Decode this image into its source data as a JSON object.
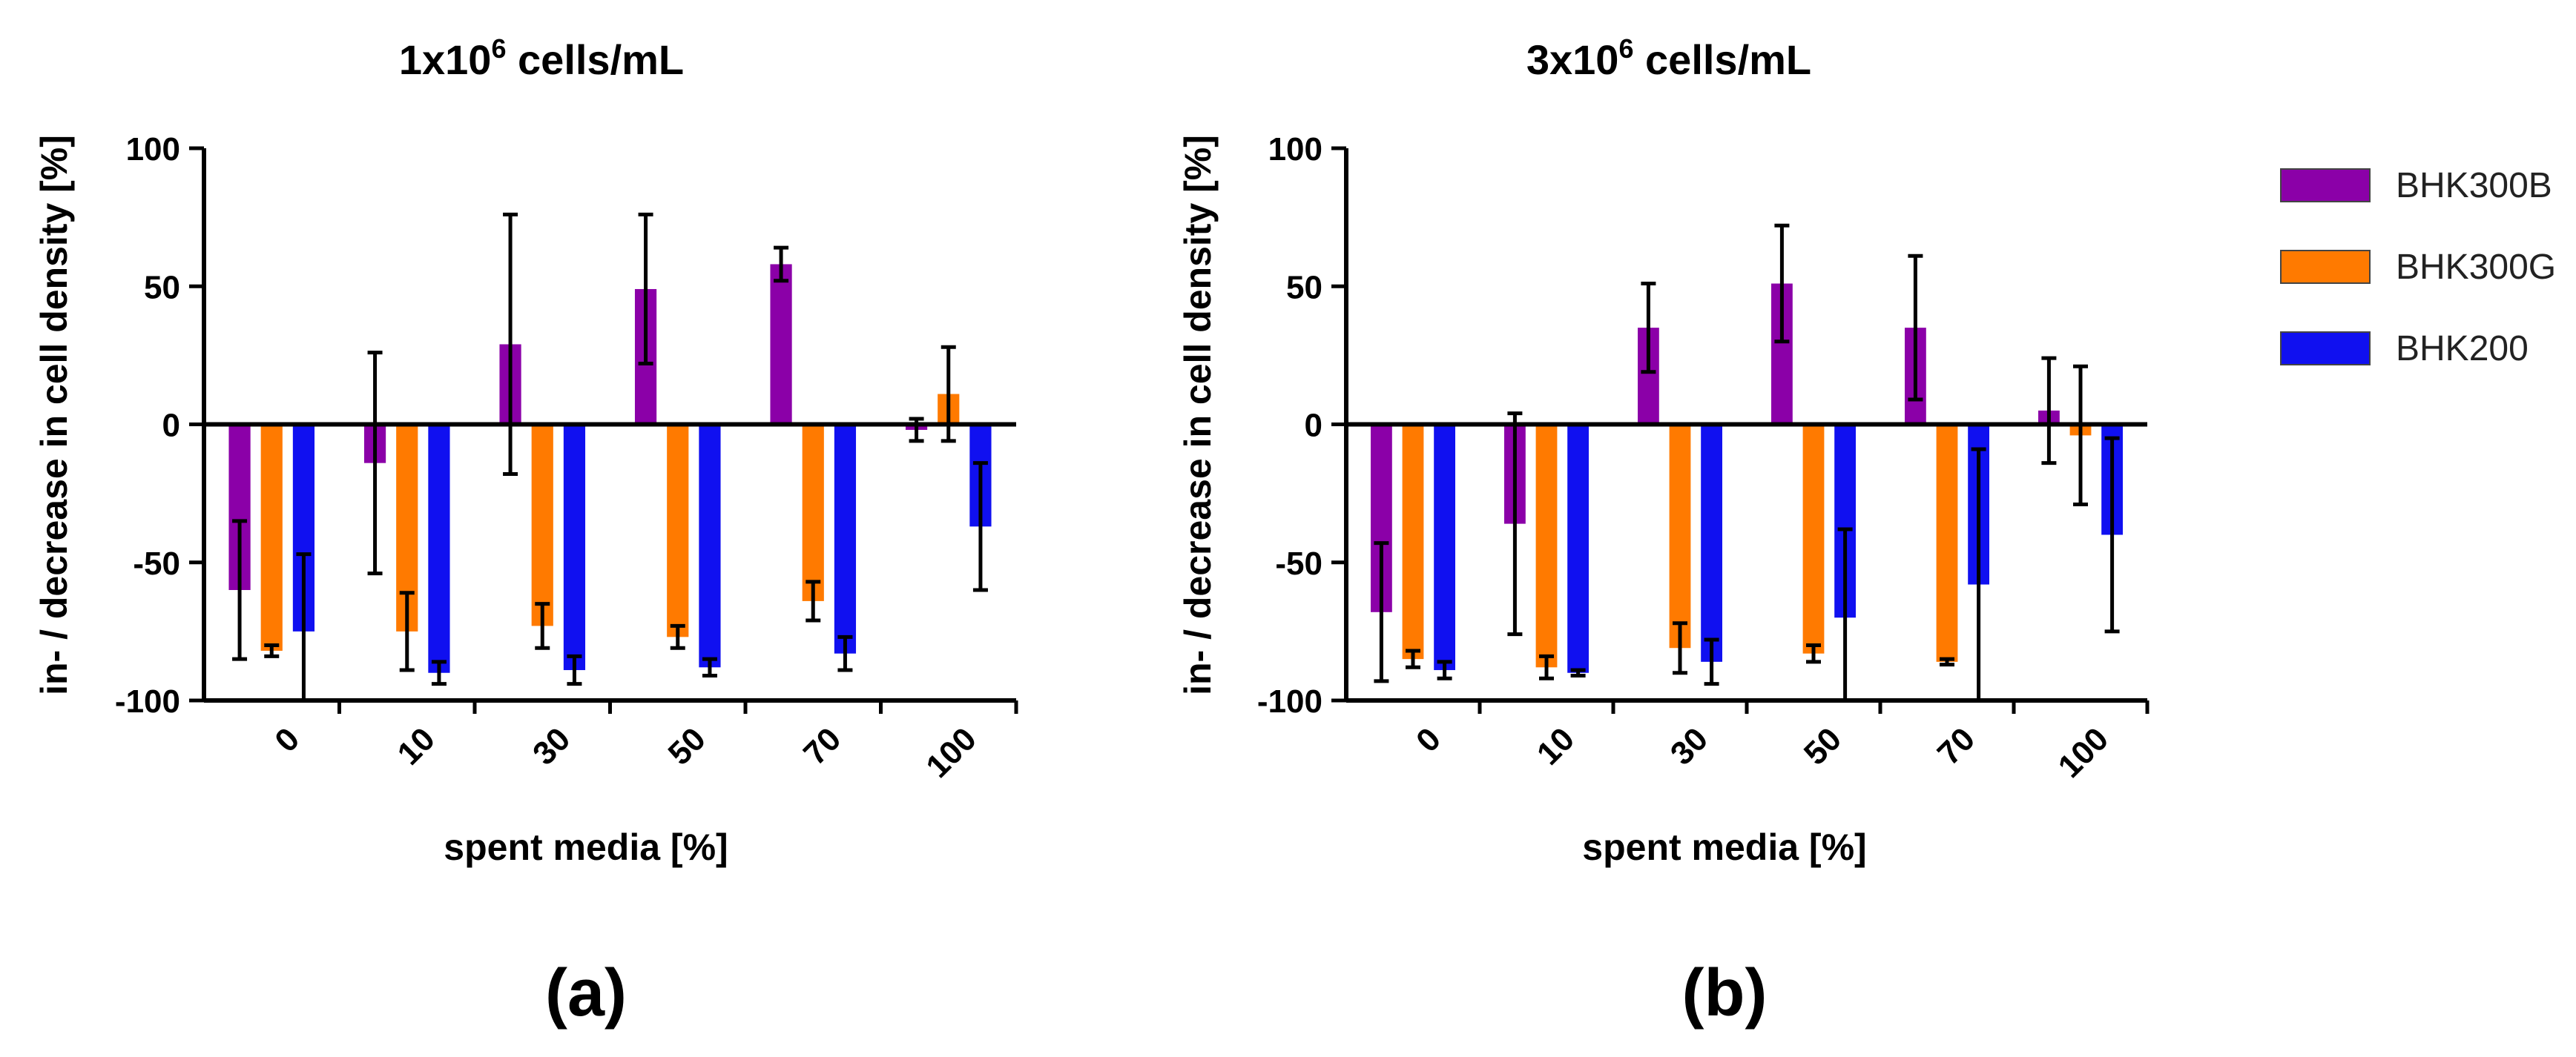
{
  "legend": [
    {
      "name": "BHK300B",
      "color": "#8B00A8"
    },
    {
      "name": "BHK300G",
      "color": "#FF7A00"
    },
    {
      "name": "BHK200",
      "color": "#1010F0"
    }
  ],
  "chart_data": [
    {
      "type": "bar",
      "panel_label": "(a)",
      "title_prefix": "1x10",
      "title_exp": "6",
      "title_suffix": " cells/mL",
      "xlabel": "spent media [%]",
      "ylabel": "in- / decrease in cell density [%]",
      "ylim": [
        -100,
        100
      ],
      "yticks": [
        "-100",
        "-50",
        "0",
        "50",
        "100"
      ],
      "categories": [
        "0",
        "10",
        "30",
        "50",
        "70",
        "100"
      ],
      "series": [
        {
          "name": "BHK300B",
          "values": [
            -60,
            -14,
            29,
            49,
            58,
            -2
          ],
          "errors": [
            25,
            40,
            47,
            27,
            6,
            4
          ]
        },
        {
          "name": "BHK300G",
          "values": [
            -82,
            -75,
            -73,
            -77,
            -64,
            11
          ],
          "errors": [
            2,
            14,
            8,
            4,
            7,
            17
          ]
        },
        {
          "name": "BHK200",
          "values": [
            -75,
            -90,
            -89,
            -88,
            -83,
            -37
          ],
          "errors": [
            28,
            4,
            5,
            3,
            6,
            23
          ]
        }
      ]
    },
    {
      "type": "bar",
      "panel_label": "(b)",
      "title_prefix": "3x10",
      "title_exp": "6",
      "title_suffix": " cells/mL",
      "xlabel": "spent media [%]",
      "ylabel": "in- / decrease in cell density [%]",
      "ylim": [
        -100,
        100
      ],
      "yticks": [
        "-100",
        "-50",
        "0",
        "50",
        "100"
      ],
      "categories": [
        "0",
        "10",
        "30",
        "50",
        "70",
        "100"
      ],
      "series": [
        {
          "name": "BHK300B",
          "values": [
            -68,
            -36,
            35,
            51,
            35,
            5
          ],
          "errors": [
            25,
            40,
            16,
            21,
            26,
            19
          ]
        },
        {
          "name": "BHK300G",
          "values": [
            -85,
            -88,
            -81,
            -83,
            -86,
            -4
          ],
          "errors": [
            3,
            4,
            9,
            3,
            1,
            25
          ]
        },
        {
          "name": "BHK200",
          "values": [
            -89,
            -90,
            -86,
            -70,
            -58,
            -40
          ],
          "errors": [
            3,
            1,
            8,
            32,
            49,
            35
          ]
        }
      ]
    }
  ]
}
